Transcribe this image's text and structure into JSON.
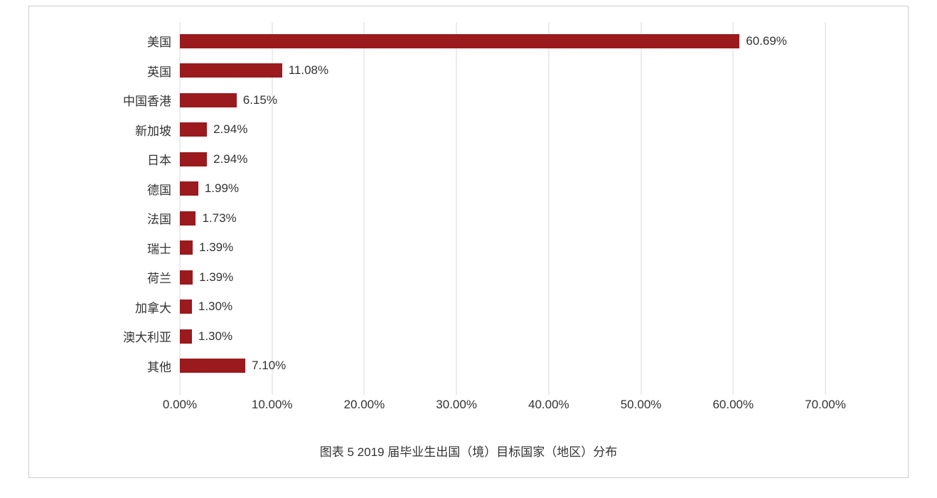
{
  "chart_data": {
    "type": "bar",
    "orientation": "horizontal",
    "title": "图表 5  2019 届毕业生出国（境）目标国家（地区）分布",
    "categories": [
      "美国",
      "英国",
      "中国香港",
      "新加坡",
      "日本",
      "德国",
      "法国",
      "瑞士",
      "荷兰",
      "加拿大",
      "澳大利亚",
      "其他"
    ],
    "values": [
      60.69,
      11.08,
      6.15,
      2.94,
      2.94,
      1.99,
      1.73,
      1.39,
      1.39,
      1.3,
      1.3,
      7.1
    ],
    "value_labels": [
      "60.69%",
      "11.08%",
      "6.15%",
      "2.94%",
      "2.94%",
      "1.99%",
      "1.73%",
      "1.39%",
      "1.39%",
      "1.30%",
      "1.30%",
      "7.10%"
    ],
    "xlabel": "",
    "ylabel": "",
    "xlim": [
      0,
      70
    ],
    "x_ticks": [
      "0.00%",
      "10.00%",
      "20.00%",
      "30.00%",
      "40.00%",
      "50.00%",
      "60.00%",
      "70.00%"
    ],
    "grid": "vertical",
    "legend": "none"
  },
  "colors": {
    "bar": "#9a1a1d",
    "grid": "#d9d9d9",
    "text": "#333333",
    "frame_border": "#cccccc"
  }
}
